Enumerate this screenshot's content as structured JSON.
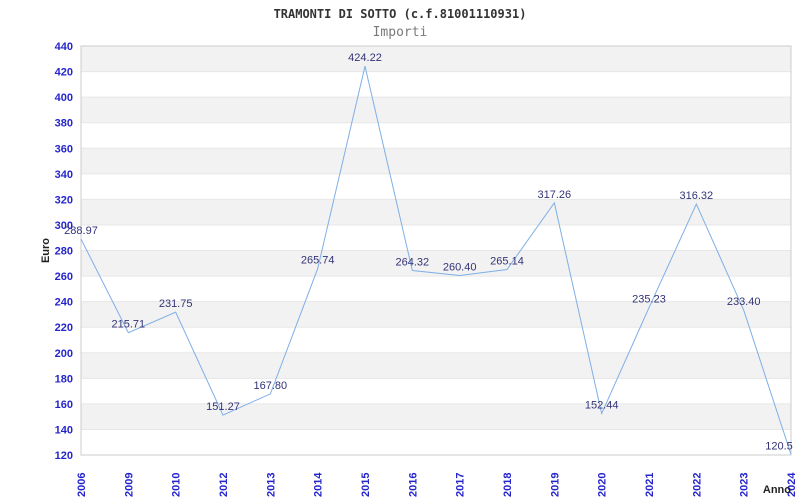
{
  "title": "TRAMONTI DI SOTTO (c.f.81001110931)",
  "subtitle": "Importi",
  "chart_data": {
    "type": "line",
    "title": "TRAMONTI DI SOTTO (c.f.81001110931)",
    "subtitle": "Importi",
    "xlabel": "Anno",
    "ylabel": "Euro",
    "categories": [
      "2006",
      "2009",
      "2010",
      "2012",
      "2013",
      "2014",
      "2015",
      "2016",
      "2017",
      "2018",
      "2019",
      "2020",
      "2021",
      "2022",
      "2023",
      "2024"
    ],
    "values": [
      288.97,
      215.71,
      231.75,
      151.27,
      167.8,
      265.74,
      424.22,
      264.32,
      260.4,
      265.14,
      317.26,
      152.44,
      235.23,
      316.32,
      233.4,
      120.5
    ],
    "value_labels": [
      "288.97",
      "215.71",
      "231.75",
      "151.27",
      "167.80",
      "265.74",
      "424.22",
      "264.32",
      "260.40",
      "265.14",
      "317.26",
      "152.44",
      "235.23",
      "316.32",
      "233.40",
      "120.5"
    ],
    "ylim": [
      120,
      440
    ],
    "ytick_step": 20,
    "grid": "horizontal-alternating-bands",
    "legend": "none",
    "marker": "none"
  },
  "colors": {
    "background": "#ffffff",
    "band": "#f2f2f2",
    "plot_border": "#cccccc",
    "grid_line": "#e7e7e7",
    "line": "#7fafe6",
    "tick_label": "#2525cc",
    "data_label": "#333377",
    "title": "#333333",
    "subtitle": "#7a7a7a",
    "axis_title": "#222222"
  }
}
